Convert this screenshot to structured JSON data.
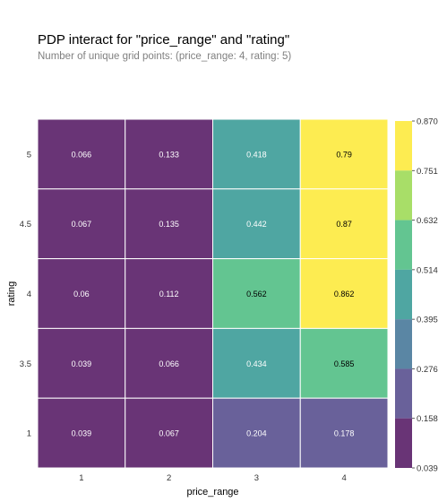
{
  "title": "PDP interact for \"price_range\" and \"rating\"",
  "subtitle": "Number of unique grid points: (price_range: 4, rating: 5)",
  "chart_data": {
    "type": "heatmap",
    "xlabel": "price_range",
    "ylabel": "rating",
    "x_categories": [
      "1",
      "2",
      "3",
      "4"
    ],
    "y_categories": [
      "5",
      "4.5",
      "4",
      "3.5",
      "1"
    ],
    "values": [
      [
        0.066,
        0.133,
        0.418,
        0.79
      ],
      [
        0.067,
        0.135,
        0.442,
        0.87
      ],
      [
        0.06,
        0.112,
        0.562,
        0.862
      ],
      [
        0.039,
        0.066,
        0.434,
        0.585
      ],
      [
        0.039,
        0.067,
        0.204,
        0.178
      ]
    ],
    "cell_labels": [
      [
        "0.066",
        "0.133",
        "0.418",
        "0.79"
      ],
      [
        "0.067",
        "0.135",
        "0.442",
        "0.87"
      ],
      [
        "0.06",
        "0.112",
        "0.562",
        "0.862"
      ],
      [
        "0.039",
        "0.066",
        "0.434",
        "0.585"
      ],
      [
        "0.039",
        "0.067",
        "0.204",
        "0.178"
      ]
    ],
    "colorbar": {
      "ticks": [
        "0.870",
        "0.751",
        "0.632",
        "0.514",
        "0.395",
        "0.276",
        "0.158",
        "0.039"
      ],
      "range": [
        0.039,
        0.87
      ],
      "colormap": "viridis",
      "bins": 7
    },
    "colors": [
      "#440154",
      "#46337e",
      "#365c8d",
      "#277f8e",
      "#1fa187",
      "#4ac16d",
      "#a0da39",
      "#fde725"
    ],
    "grid": false
  }
}
